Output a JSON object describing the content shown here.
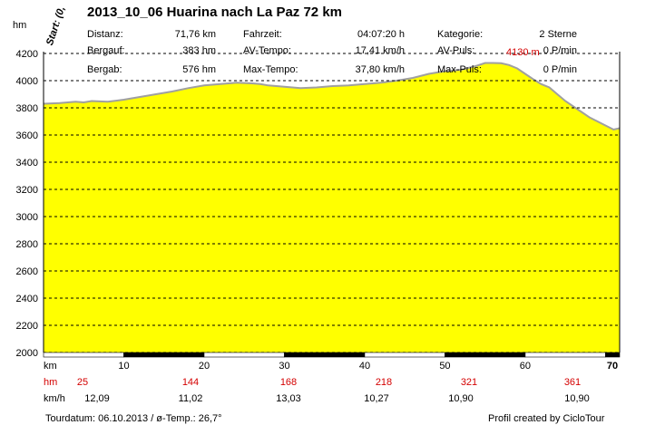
{
  "header": {
    "title": "2013_10_06 Huarina nach La Paz 72 km",
    "y_unit": "hm",
    "start_label": "Start: (0,"
  },
  "stats": {
    "distanz_label": "Distanz:",
    "distanz_value": "71,76 km",
    "bergauf_label": "Bergauf:",
    "bergauf_value": "383 hm",
    "bergab_label": "Bergab:",
    "bergab_value": "576 hm",
    "fahrzeit_label": "Fahrzeit:",
    "fahrzeit_value": "04:07:20 h",
    "avtempo_label": "AV-Tempo:",
    "avtempo_value": "17,41 km/h",
    "maxtempo_label": "Max-Tempo:",
    "maxtempo_value": "37,80 km/h",
    "kategorie_label": "Kategorie:",
    "kategorie_value": "2 Sterne",
    "avpuls_label": "AV-Puls:",
    "avpuls_value": "0 P/min",
    "maxpuls_label": "Max-Puls:",
    "maxpuls_value": "0 P/min"
  },
  "peak_label": "4130 m",
  "rows": {
    "km_label": "km",
    "hm_label": "hm",
    "hm_values": [
      "25",
      "144",
      "168",
      "218",
      "321",
      "361"
    ],
    "kmh_label": "km/h",
    "kmh_values": [
      "12,09",
      "11,02",
      "13,03",
      "10,27",
      "10,90",
      "10,90"
    ]
  },
  "footer": {
    "left": "Tourdatum: 06.10.2013  /  ø-Temp.: 26,7°",
    "right": "Profil created by CicloTour"
  },
  "colors": {
    "fill": "#ffff00",
    "profile_line": "#a0a0a0",
    "red": "#d40000",
    "grid": "#000000"
  },
  "chart_data": {
    "type": "area",
    "xlabel": "km",
    "ylabel": "hm",
    "xlim": [
      0,
      71.76
    ],
    "ylim": [
      2000,
      4200
    ],
    "x_ticks": [
      10,
      20,
      30,
      40,
      50,
      60,
      70
    ],
    "y_ticks": [
      2000,
      2200,
      2400,
      2600,
      2800,
      3000,
      3200,
      3400,
      3600,
      3800,
      4000,
      4200
    ],
    "grid": "horizontal dashed",
    "annotation": {
      "text": "4130 m",
      "x": 56,
      "y": 4130
    },
    "series": [
      {
        "x": [
          0,
          2,
          4,
          5,
          6,
          8,
          10,
          12,
          14,
          16,
          18,
          20,
          22,
          24,
          26,
          27,
          28,
          30,
          32,
          34,
          36,
          38,
          40,
          42,
          44,
          46,
          48,
          50,
          52,
          54,
          55,
          56,
          57,
          58,
          59,
          60,
          61,
          62,
          63,
          64,
          65,
          66,
          67,
          68,
          69,
          70,
          71,
          71.76
        ],
        "y": [
          3830,
          3835,
          3845,
          3840,
          3850,
          3845,
          3860,
          3880,
          3900,
          3920,
          3945,
          3965,
          3975,
          3985,
          3980,
          3975,
          3965,
          3955,
          3945,
          3950,
          3960,
          3965,
          3975,
          3985,
          4000,
          4020,
          4050,
          4070,
          4080,
          4110,
          4130,
          4130,
          4128,
          4115,
          4090,
          4050,
          4010,
          3975,
          3950,
          3900,
          3850,
          3810,
          3770,
          3730,
          3700,
          3670,
          3640,
          3650
        ]
      }
    ]
  }
}
